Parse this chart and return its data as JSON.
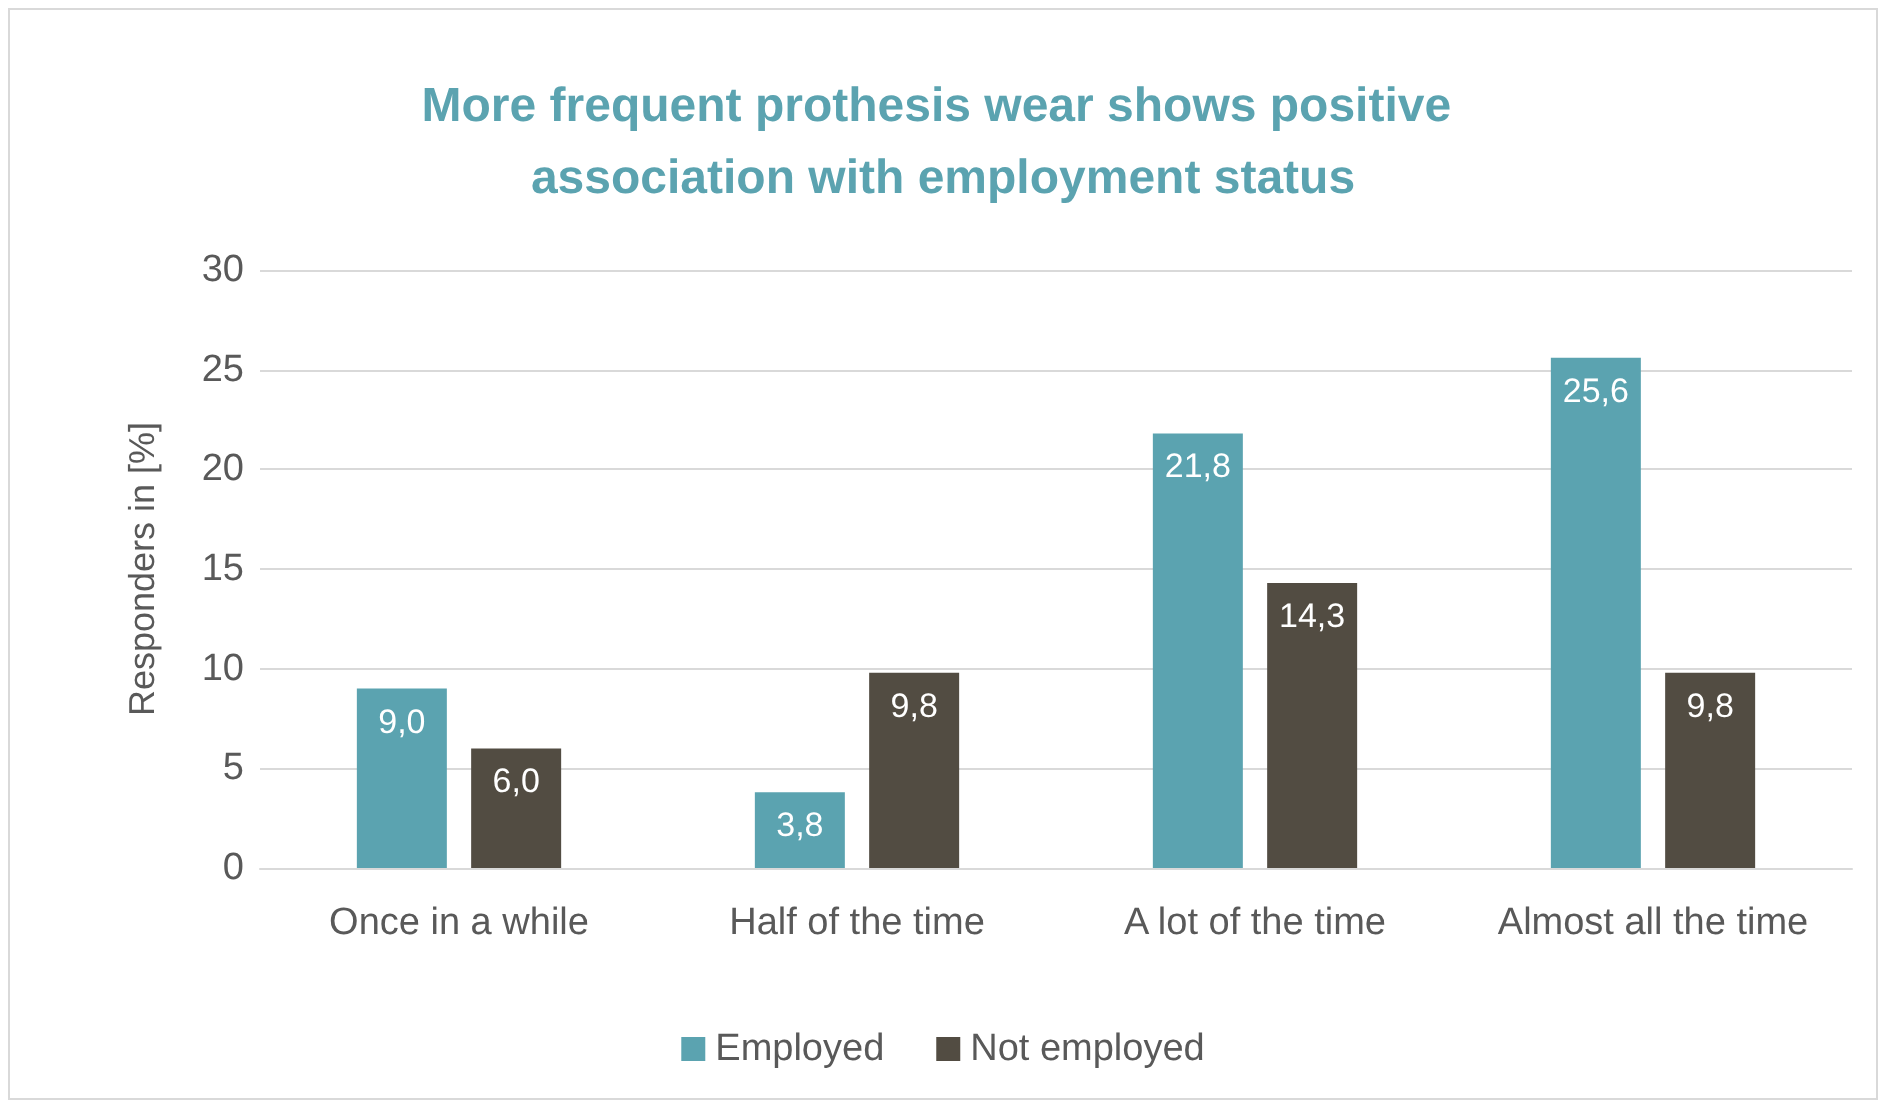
{
  "chart_data": {
    "type": "bar",
    "title": "More frequent prothesis wear shows positive association with employment status",
    "ylabel": "Responders in [%]",
    "categories": [
      "Once in a while",
      "Half of the time",
      "A lot of the time",
      "Almost all the time"
    ],
    "series": [
      {
        "name": "Employed",
        "color": "#5ba3b0",
        "values": [
          9.0,
          3.8,
          21.8,
          25.6
        ],
        "value_labels": [
          "9,0",
          "3,8",
          "21,8",
          "25,6"
        ]
      },
      {
        "name": "Not employed",
        "color": "#524c42",
        "values": [
          6.0,
          9.8,
          14.3,
          9.8
        ],
        "value_labels": [
          "6,0",
          "9,8",
          "14,3",
          "9,8"
        ]
      }
    ],
    "ylim": [
      0,
      30
    ],
    "yticks": [
      0,
      5,
      10,
      15,
      20,
      25,
      30
    ],
    "grid": "y",
    "legend": "bottom"
  }
}
